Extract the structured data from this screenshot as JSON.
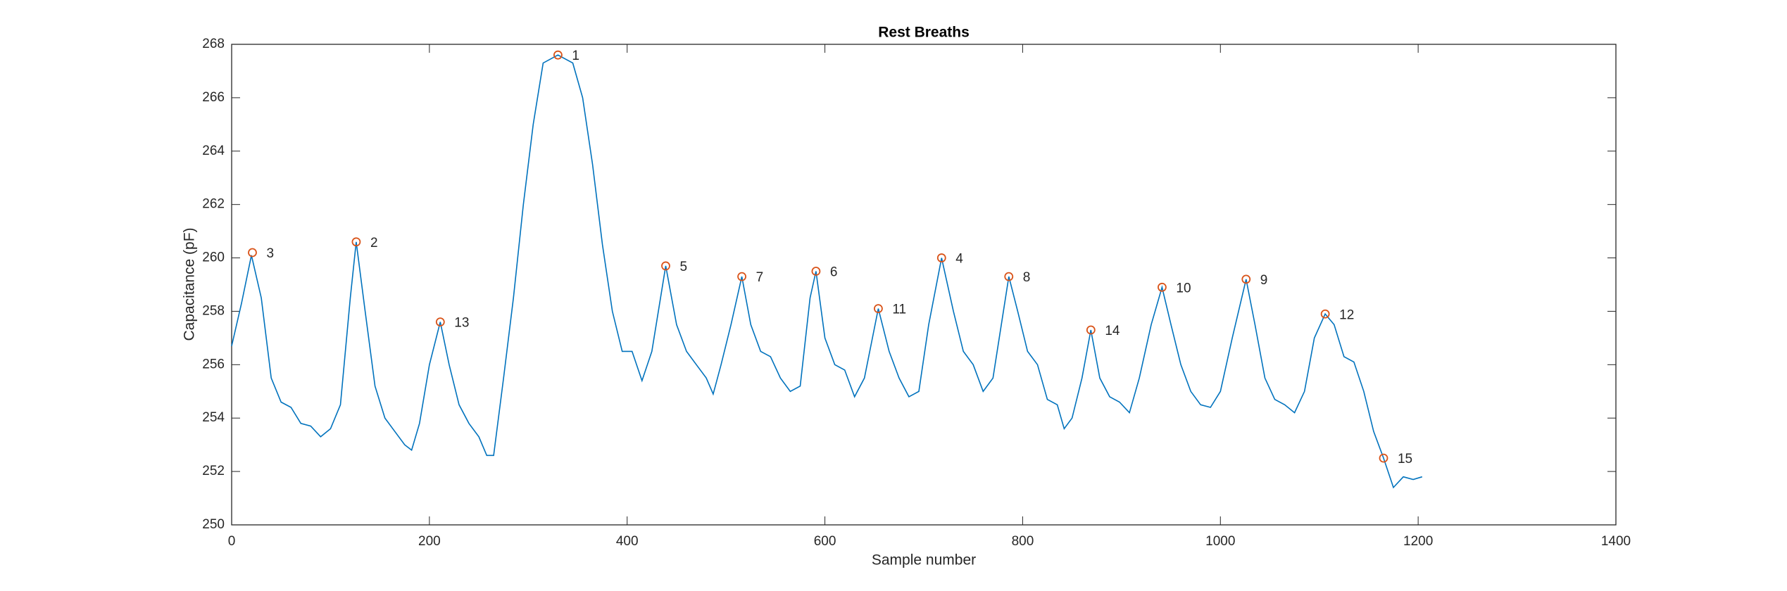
{
  "chart_data": {
    "type": "line",
    "title": "Rest Breaths",
    "x_label": "Sample number",
    "y_label": "Capacitance (pF)",
    "xlim": [
      0,
      1400
    ],
    "xticks": [
      0,
      200,
      400,
      600,
      800,
      1000,
      1200,
      1400
    ],
    "ylim": [
      250,
      268
    ],
    "yticks": [
      250,
      252,
      254,
      256,
      258,
      260,
      262,
      264,
      266,
      268
    ],
    "series": [
      {
        "color": "#0072bd",
        "x": [
          0,
          10,
          20,
          30,
          40,
          50,
          60,
          70,
          80,
          90,
          100,
          110,
          120,
          126,
          135,
          145,
          155,
          165,
          175,
          182,
          190,
          200,
          211,
          220,
          230,
          240,
          250,
          258,
          265,
          275,
          285,
          295,
          305,
          315,
          330,
          345,
          355,
          365,
          375,
          385,
          395,
          405,
          415,
          425,
          439,
          450,
          460,
          470,
          480,
          487,
          495,
          505,
          516,
          525,
          535,
          545,
          555,
          565,
          575,
          585,
          591,
          600,
          610,
          620,
          630,
          640,
          654,
          665,
          675,
          685,
          695,
          705,
          718,
          730,
          740,
          750,
          760,
          770,
          786,
          795,
          805,
          815,
          825,
          835,
          842,
          850,
          860,
          869,
          878,
          888,
          898,
          908,
          918,
          930,
          941,
          950,
          960,
          970,
          980,
          990,
          1000,
          1012,
          1026,
          1035,
          1045,
          1055,
          1065,
          1075,
          1085,
          1095,
          1106,
          1115,
          1125,
          1135,
          1145,
          1155,
          1165,
          1175,
          1185,
          1195,
          1204
        ],
        "values": [
          256.7,
          258.3,
          260.1,
          258.5,
          255.5,
          254.6,
          254.4,
          253.8,
          253.7,
          253.3,
          253.6,
          254.5,
          258.5,
          260.6,
          258.0,
          255.2,
          254.0,
          253.5,
          253.0,
          252.8,
          253.8,
          256.0,
          257.6,
          256.0,
          254.5,
          253.8,
          253.3,
          252.6,
          252.6,
          255.5,
          258.5,
          262.0,
          265.0,
          267.3,
          267.6,
          267.3,
          266.0,
          263.5,
          260.5,
          258.0,
          256.5,
          256.5,
          255.4,
          256.5,
          259.7,
          257.5,
          256.5,
          256.0,
          255.5,
          254.9,
          256.0,
          257.5,
          259.3,
          257.5,
          256.5,
          256.3,
          255.5,
          255.0,
          255.2,
          258.5,
          259.5,
          257.0,
          256.0,
          255.8,
          254.8,
          255.5,
          258.1,
          256.5,
          255.5,
          254.8,
          255.0,
          257.5,
          260.0,
          258.0,
          256.5,
          256.0,
          255.0,
          255.5,
          259.3,
          258.0,
          256.5,
          256.0,
          254.7,
          254.5,
          253.6,
          254.0,
          255.5,
          257.3,
          255.5,
          254.8,
          254.6,
          254.2,
          255.5,
          257.5,
          258.9,
          257.5,
          256.0,
          255.0,
          254.5,
          254.4,
          255.0,
          257.0,
          259.2,
          257.5,
          255.5,
          254.7,
          254.5,
          254.2,
          255.0,
          257.0,
          257.9,
          257.5,
          256.3,
          256.1,
          255.0,
          253.5,
          252.5,
          251.4,
          251.8,
          251.7,
          251.8
        ]
      }
    ],
    "peaks": {
      "color": "#d95319",
      "x": [
        330,
        126,
        21,
        718,
        439,
        591,
        516,
        786,
        1026,
        941,
        654,
        1106,
        211,
        869,
        1165
      ],
      "values": [
        267.6,
        260.6,
        260.2,
        260.0,
        259.7,
        259.5,
        259.3,
        259.3,
        259.2,
        258.9,
        258.1,
        257.9,
        257.6,
        257.3,
        252.5
      ],
      "labels": [
        "1",
        "2",
        "3",
        "4",
        "5",
        "6",
        "7",
        "8",
        "9",
        "10",
        "11",
        "12",
        "13",
        "14",
        "15"
      ]
    }
  }
}
